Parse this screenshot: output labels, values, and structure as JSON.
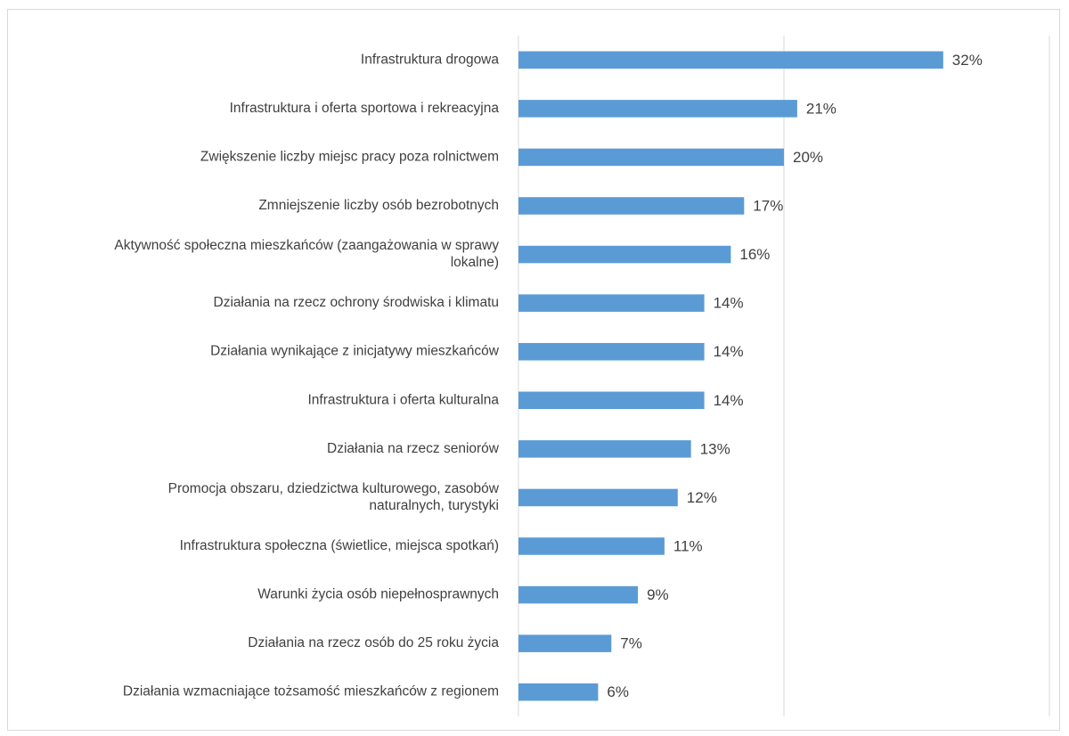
{
  "chart_data": {
    "type": "bar",
    "orientation": "horizontal",
    "title": "",
    "xlabel": "",
    "ylabel": "",
    "xlim": [
      0,
      0.4
    ],
    "grid": true,
    "legend": "none",
    "bar_color": "#5b9bd5",
    "value_format": "percent",
    "categories": [
      [
        "Infrastruktura drogowa"
      ],
      [
        "Infrastruktura i oferta sportowa i rekreacyjna"
      ],
      [
        "Zwiększenie liczby miejsc pracy poza rolnictwem"
      ],
      [
        "Zmniejszenie liczby osób bezrobotnych"
      ],
      [
        "Aktywność społeczna mieszkańców (zaangażowania w sprawy",
        "lokalne)"
      ],
      [
        "Działania na rzecz ochrony środwiska i klimatu"
      ],
      [
        "Działania wynikające z inicjatywy mieszkańców"
      ],
      [
        "Infrastruktura i oferta kulturalna"
      ],
      [
        "Działania na rzecz seniorów"
      ],
      [
        "Promocja obszaru, dziedzictwa kulturowego, zasobów",
        "naturalnych, turystyki"
      ],
      [
        "Infrastruktura społeczna (świetlice, miejsca spotkań)"
      ],
      [
        "Warunki życia osób niepełnosprawnych"
      ],
      [
        "Działania na rzecz osób do 25 roku życia"
      ],
      [
        "Działania wzmacniające tożsamość mieszkańców z regionem"
      ]
    ],
    "values": [
      0.32,
      0.21,
      0.2,
      0.17,
      0.16,
      0.14,
      0.14,
      0.14,
      0.13,
      0.12,
      0.11,
      0.09,
      0.07,
      0.06
    ],
    "labels": [
      "32%",
      "21%",
      "20%",
      "17%",
      "16%",
      "14%",
      "14%",
      "14%",
      "13%",
      "12%",
      "11%",
      "9%",
      "7%",
      "6%"
    ]
  }
}
